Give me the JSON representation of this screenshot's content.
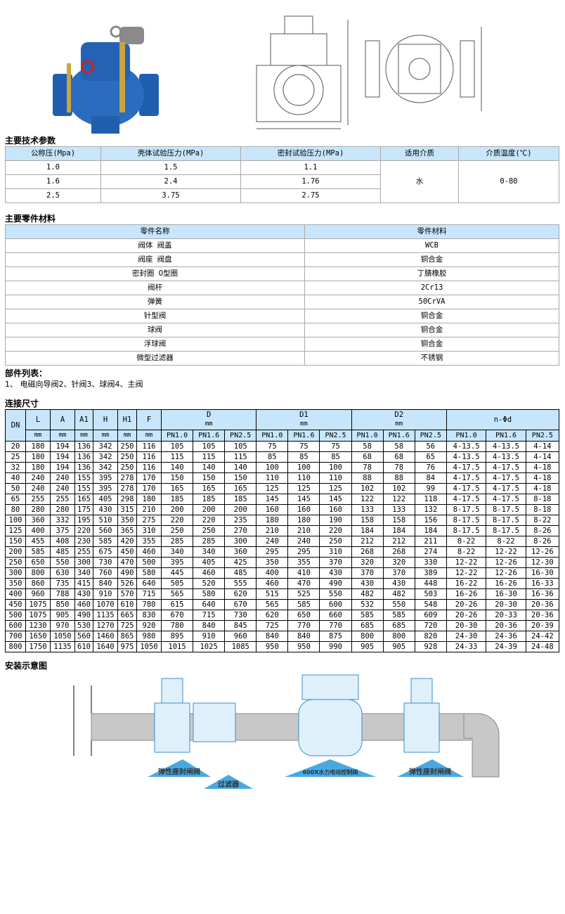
{
  "sections": {
    "tech": "主要技术参数",
    "parts": "主要零件材料",
    "part_list_title": "部件列表：",
    "part_list": "1、 电磁向导阀2、针阀3、球阀4、主阀",
    "dims": "连接尺寸",
    "install": "安装示意图"
  },
  "tech_table": {
    "headers": [
      "公称压(Mpa)",
      "壳体试验压力(MPa)",
      "密封试验压力(MPa)",
      "适用介质",
      "介质温度(℃)"
    ],
    "rows": [
      [
        "1.0",
        "1.5",
        "1.1"
      ],
      [
        "1.6",
        "2.4",
        "1.76"
      ],
      [
        "2.5",
        "3.75",
        "2.75"
      ]
    ],
    "medium": "水",
    "temp": "0-80"
  },
  "parts_table": {
    "headers": [
      "零件名称",
      "零件材料"
    ],
    "rows": [
      [
        "阀体 阀盖",
        "WCB"
      ],
      [
        "阀座 阀盘",
        "铜合金"
      ],
      [
        "密封圈 O型圈",
        "丁腈橡胶"
      ],
      [
        "阀杆",
        "2Cr13"
      ],
      [
        "弹簧",
        "50CrVA"
      ],
      [
        "针型阀",
        "铜合金"
      ],
      [
        "球阀",
        "铜合金"
      ],
      [
        "浮球阀",
        "铜合金"
      ],
      [
        "微型过滤器",
        "不锈钢"
      ]
    ]
  },
  "dim_table": {
    "headers": [
      "DN",
      "L",
      "A",
      "A1",
      "H",
      "H1",
      "F"
    ],
    "groups": [
      "D",
      "D1",
      "D2",
      "n-Φd"
    ],
    "unit": "mm",
    "pn": [
      "PN1.0",
      "PN1.6",
      "PN2.5"
    ],
    "rows": [
      [
        "20",
        "180",
        "194",
        "136",
        "342",
        "250",
        "116",
        "105",
        "105",
        "105",
        "75",
        "75",
        "75",
        "58",
        "58",
        "56",
        "4-13.5",
        "4-13.5",
        "4-14"
      ],
      [
        "25",
        "180",
        "194",
        "136",
        "342",
        "250",
        "116",
        "115",
        "115",
        "115",
        "85",
        "85",
        "85",
        "68",
        "68",
        "65",
        "4-13.5",
        "4-13.5",
        "4-14"
      ],
      [
        "32",
        "180",
        "194",
        "136",
        "342",
        "250",
        "116",
        "140",
        "140",
        "140",
        "100",
        "100",
        "100",
        "78",
        "78",
        "76",
        "4-17.5",
        "4-17.5",
        "4-18"
      ],
      [
        "40",
        "240",
        "240",
        "155",
        "395",
        "278",
        "170",
        "150",
        "150",
        "150",
        "110",
        "110",
        "110",
        "88",
        "88",
        "84",
        "4-17.5",
        "4-17.5",
        "4-18"
      ],
      [
        "50",
        "240",
        "240",
        "155",
        "395",
        "278",
        "170",
        "165",
        "165",
        "165",
        "125",
        "125",
        "125",
        "102",
        "102",
        "99",
        "4-17.5",
        "4-17.5",
        "4-18"
      ],
      [
        "65",
        "255",
        "255",
        "165",
        "405",
        "298",
        "180",
        "185",
        "185",
        "185",
        "145",
        "145",
        "145",
        "122",
        "122",
        "118",
        "4-17.5",
        "4-17.5",
        "8-18"
      ],
      [
        "80",
        "280",
        "280",
        "175",
        "430",
        "315",
        "210",
        "200",
        "200",
        "200",
        "160",
        "160",
        "160",
        "133",
        "133",
        "132",
        "8-17.5",
        "8-17.5",
        "8-18"
      ],
      [
        "100",
        "360",
        "332",
        "195",
        "510",
        "350",
        "275",
        "220",
        "220",
        "235",
        "180",
        "180",
        "190",
        "158",
        "158",
        "156",
        "8-17.5",
        "8-17.5",
        "8-22"
      ],
      [
        "125",
        "400",
        "375",
        "220",
        "560",
        "365",
        "310",
        "250",
        "250",
        "270",
        "210",
        "210",
        "220",
        "184",
        "184",
        "184",
        "8-17.5",
        "8-17.5",
        "8-26"
      ],
      [
        "150",
        "455",
        "408",
        "230",
        "585",
        "420",
        "355",
        "285",
        "285",
        "300",
        "240",
        "240",
        "250",
        "212",
        "212",
        "211",
        "8-22",
        "8-22",
        "8-26"
      ],
      [
        "200",
        "585",
        "485",
        "255",
        "675",
        "450",
        "460",
        "340",
        "340",
        "360",
        "295",
        "295",
        "310",
        "268",
        "268",
        "274",
        "8-22",
        "12-22",
        "12-26"
      ],
      [
        "250",
        "650",
        "550",
        "300",
        "730",
        "470",
        "500",
        "395",
        "405",
        "425",
        "350",
        "355",
        "370",
        "320",
        "320",
        "330",
        "12-22",
        "12-26",
        "12-30"
      ],
      [
        "300",
        "800",
        "630",
        "340",
        "760",
        "490",
        "580",
        "445",
        "460",
        "485",
        "400",
        "410",
        "430",
        "370",
        "370",
        "389",
        "12-22",
        "12-26",
        "16-30"
      ],
      [
        "350",
        "860",
        "735",
        "415",
        "840",
        "526",
        "640",
        "505",
        "520",
        "555",
        "460",
        "470",
        "490",
        "430",
        "430",
        "448",
        "16-22",
        "16-26",
        "16-33"
      ],
      [
        "400",
        "960",
        "788",
        "430",
        "910",
        "570",
        "715",
        "565",
        "580",
        "620",
        "515",
        "525",
        "550",
        "482",
        "482",
        "503",
        "16-26",
        "16-30",
        "16-36"
      ],
      [
        "450",
        "1075",
        "850",
        "460",
        "1070",
        "610",
        "780",
        "615",
        "640",
        "670",
        "565",
        "585",
        "600",
        "532",
        "550",
        "548",
        "20-26",
        "20-30",
        "20-36"
      ],
      [
        "500",
        "1075",
        "905",
        "490",
        "1135",
        "665",
        "830",
        "670",
        "715",
        "730",
        "620",
        "650",
        "660",
        "585",
        "585",
        "609",
        "20-26",
        "20-33",
        "20-36"
      ],
      [
        "600",
        "1230",
        "970",
        "530",
        "1270",
        "725",
        "920",
        "780",
        "840",
        "845",
        "725",
        "770",
        "770",
        "685",
        "685",
        "720",
        "20-30",
        "20-36",
        "20-39"
      ],
      [
        "700",
        "1650",
        "1050",
        "560",
        "1460",
        "865",
        "980",
        "895",
        "910",
        "960",
        "840",
        "840",
        "875",
        "800",
        "800",
        "820",
        "24-30",
        "24-36",
        "24-42"
      ],
      [
        "800",
        "1750",
        "1135",
        "610",
        "1640",
        "975",
        "1050",
        "1015",
        "1025",
        "1085",
        "950",
        "950",
        "990",
        "905",
        "905",
        "928",
        "24-33",
        "24-39",
        "24-48"
      ]
    ]
  },
  "install": {
    "gate1": "弹性座封闸阀",
    "filter": "过滤器",
    "control": "600X水力电动控制阀",
    "gate2": "弹性座封闸阀"
  },
  "colors": {
    "header_bg": "#c7e6fb",
    "valve_blue": "#1f5fae",
    "diagram_blue": "#4aa8e0"
  }
}
